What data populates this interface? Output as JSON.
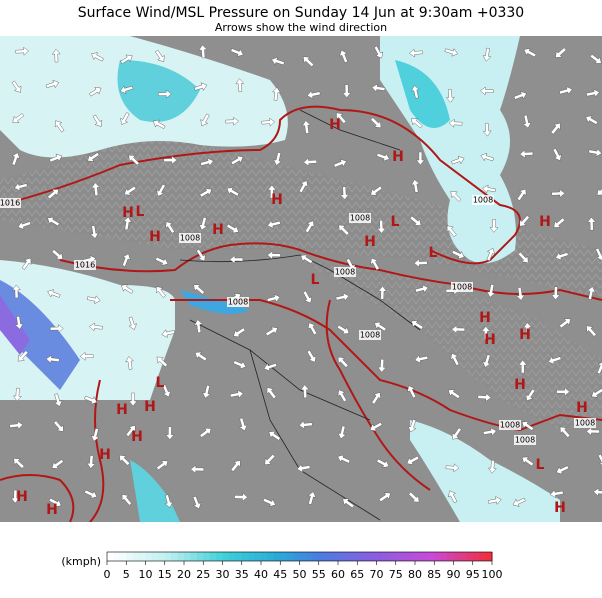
{
  "header": {
    "title": "Surface Wind/MSL Pressure on Sunday 14 Jun at 9:30am +0330",
    "subtitle": "Arrows show the wind direction"
  },
  "legend": {
    "unit": "(kmph)",
    "ticks": [
      0,
      5,
      10,
      15,
      20,
      25,
      30,
      35,
      40,
      45,
      50,
      55,
      60,
      65,
      70,
      75,
      80,
      85,
      90,
      95,
      100
    ]
  },
  "isobar_labels": [
    "1016",
    "1016",
    "1008",
    "1008",
    "1008",
    "1008",
    "1008",
    "1008",
    "1008",
    "1008",
    "1008",
    "1008"
  ],
  "pressure_centers": [
    "H",
    "H",
    "H",
    "H",
    "L",
    "H",
    "H",
    "L",
    "H",
    "L",
    "H",
    "H",
    "H",
    "H",
    "L",
    "H",
    "H",
    "H",
    "L",
    "H",
    "H",
    "H",
    "L",
    "H",
    "H",
    "H"
  ]
}
